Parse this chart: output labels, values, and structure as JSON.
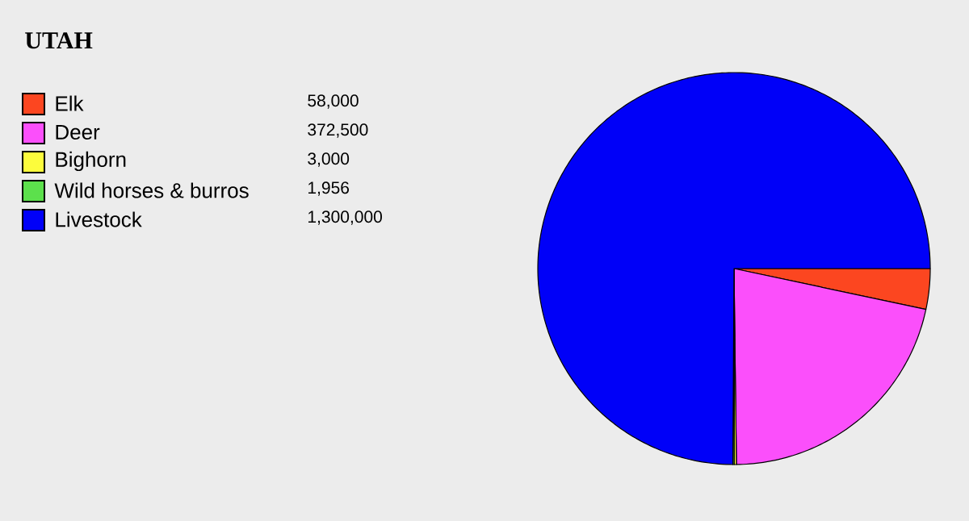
{
  "chart_data": {
    "type": "pie",
    "title": "UTAH",
    "categories": [
      "Elk",
      "Deer",
      "Bighorn",
      "Wild horses & burros",
      "Livestock"
    ],
    "values": [
      58000,
      372500,
      3000,
      1956,
      1300000
    ],
    "value_labels": [
      "58,000",
      "372,500",
      "3,000",
      "1,956",
      "1,300,000"
    ],
    "colors": [
      "#fc4620",
      "#fb4ffb",
      "#fcfc3c",
      "#5ce04c",
      "#0000f8"
    ],
    "legend": "left"
  }
}
